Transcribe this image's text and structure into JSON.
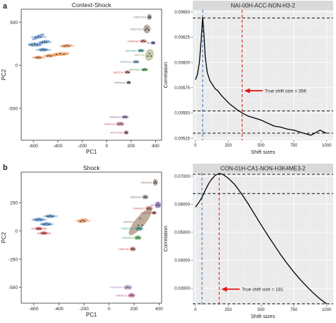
{
  "panels": [
    {
      "label": "a"
    },
    {
      "label": "b"
    }
  ],
  "chart_data": [
    {
      "type": "scatter",
      "title": "Context-Shock",
      "xlabel": "PC1",
      "ylabel": "PC2",
      "xlim": [
        -700,
        450
      ],
      "ylim": [
        -870,
        650
      ],
      "xticks": [
        -600,
        -400,
        -200,
        0,
        200,
        400
      ],
      "yticks": [
        -500,
        0,
        500
      ],
      "clusters": [
        {
          "label": "ACC-01H-MC",
          "color": "#2f6fb7",
          "x": -560,
          "y": 330,
          "w": 110,
          "h": 44,
          "rot": -25
        },
        {
          "label": "CA1-4H-MC",
          "color": "#2f6fb7",
          "x": -510,
          "y": 270,
          "w": 90,
          "h": 38,
          "rot": -10
        },
        {
          "label": "ACC-4H-MC",
          "color": "#2f6fb7",
          "x": -590,
          "y": 240,
          "w": 110,
          "h": 48,
          "rot": 0
        },
        {
          "label": "ACC-01H-MC",
          "color": "#2f6fb7",
          "x": -520,
          "y": 180,
          "w": 80,
          "h": 34,
          "rot": 0
        },
        {
          "label": "CA1-01H-MC",
          "color": "#e07020",
          "x": -330,
          "y": 225,
          "w": 90,
          "h": 30,
          "rot": -5
        },
        {
          "label": "CA1-4H-MC",
          "color": "#e07020",
          "x": -380,
          "y": 130,
          "w": 150,
          "h": 40,
          "rot": -5
        },
        {
          "label": "CA1-4H-MC",
          "color": "#e07020",
          "x": -470,
          "y": 110,
          "w": 70,
          "h": 30,
          "rot": 0
        },
        {
          "label": "ACC-4H-MC",
          "color": "#e07020",
          "x": -560,
          "y": 90,
          "w": 70,
          "h": 30,
          "rot": 0
        },
        {
          "label": "H3K27me3",
          "color": "#7a6a5a",
          "x": 350,
          "y": 560,
          "w": 40,
          "h": 70,
          "rot": 0
        },
        {
          "label": "H3K27me3",
          "color": "#7a6a5a",
          "x": 330,
          "y": 420,
          "w": 60,
          "h": 100,
          "rot": 0
        },
        {
          "label": "H3K4me3",
          "color": "#c04040",
          "x": 300,
          "y": 280,
          "w": 60,
          "h": 36,
          "rot": 0
        },
        {
          "label": "H3",
          "color": "#6040a0",
          "x": 380,
          "y": 260,
          "w": 40,
          "h": 40,
          "rot": 0
        },
        {
          "label": "H3K4me1",
          "color": "#30a0a0",
          "x": 280,
          "y": 170,
          "w": 60,
          "h": 34,
          "rot": 0
        },
        {
          "label": "H3K27ac",
          "color": "#a0a070",
          "x": 350,
          "y": 120,
          "w": 70,
          "h": 140,
          "rot": 15
        },
        {
          "label": "H3K9me3",
          "color": "#6090c0",
          "x": 240,
          "y": 40,
          "w": 60,
          "h": 40,
          "rot": 0
        },
        {
          "label": "H3K4me1",
          "color": "#40a040",
          "x": 310,
          "y": -50,
          "w": 60,
          "h": 34,
          "rot": 0
        },
        {
          "label": "H3K27ac",
          "color": "#c04040",
          "x": 170,
          "y": -80,
          "w": 50,
          "h": 40,
          "rot": 0
        },
        {
          "label": "H3K9me3",
          "color": "#7a6a5a",
          "x": 180,
          "y": -200,
          "w": 40,
          "h": 40,
          "rot": 0
        },
        {
          "label": "H3K4me3",
          "color": "#7a5a9a",
          "x": 150,
          "y": -600,
          "w": 60,
          "h": 40,
          "rot": 0
        },
        {
          "label": "H3K9me3",
          "color": "#b05070",
          "x": 110,
          "y": -680,
          "w": 70,
          "h": 50,
          "rot": 0
        },
        {
          "label": "H3K79me3",
          "color": "#b05070",
          "x": 160,
          "y": -780,
          "w": 40,
          "h": 50,
          "rot": 0
        }
      ]
    },
    {
      "type": "line",
      "title": "NAI-00H-ACC-NON-H3-2",
      "xlabel": "Shift sizes",
      "ylabel": "Correlation",
      "xlim": [
        -20,
        1050
      ],
      "ylim": [
        0.00523,
        0.00652
      ],
      "xticks": [
        0,
        250,
        500,
        750,
        1000
      ],
      "yticks": [
        0.00525,
        0.0055,
        0.00575,
        0.006,
        0.00625,
        0.0065
      ],
      "ytick_labels": [
        "0.00525",
        "0.00550",
        "0.00575",
        "0.00600",
        "0.00625",
        "0.00650"
      ],
      "x": [
        0,
        15,
        30,
        45,
        55,
        65,
        75,
        90,
        110,
        130,
        150,
        170,
        200,
        230,
        260,
        290,
        320,
        356,
        400,
        450,
        500,
        550,
        600,
        650,
        700,
        750,
        800,
        850,
        880,
        910,
        950,
        980,
        1000
      ],
      "y": [
        0.00583,
        0.00588,
        0.006,
        0.00624,
        0.00645,
        0.00628,
        0.00605,
        0.0059,
        0.00582,
        0.00578,
        0.00574,
        0.00572,
        0.00567,
        0.00563,
        0.00559,
        0.00556,
        0.00553,
        0.0055,
        0.00547,
        0.00545,
        0.00543,
        0.0054,
        0.00537,
        0.00536,
        0.00534,
        0.00533,
        0.00531,
        0.00529,
        0.00528,
        0.0053,
        0.00533,
        0.00531,
        0.0053
      ],
      "hlines": [
        0.00644,
        0.00552,
        0.0053
      ],
      "vlines": [
        {
          "x": 55,
          "color": "#2f6fb7"
        },
        {
          "x": 356,
          "color": "#e01010"
        }
      ],
      "annotation": "True shift size = 356",
      "annotation_point": [
        356,
        0.00572
      ],
      "grid": true
    },
    {
      "type": "scatter",
      "title": "Shock",
      "xlabel": "PC1",
      "ylabel": "PC2",
      "xlim": [
        -700,
        420
      ],
      "ylim": [
        -640,
        520
      ],
      "xticks": [
        -600,
        -400,
        -200,
        0,
        200,
        400
      ],
      "yticks": [
        -500,
        -250,
        0,
        250
      ],
      "clusters": [
        {
          "label": "ACC-01H-MC",
          "color": "#2f6fb7",
          "x": -560,
          "y": 100,
          "w": 90,
          "h": 34,
          "rot": 0
        },
        {
          "label": "CA1-01H-MC",
          "color": "#2f6fb7",
          "x": -470,
          "y": 130,
          "w": 80,
          "h": 32,
          "rot": 0
        },
        {
          "label": "CA1-4H-MC",
          "color": "#2f6fb7",
          "x": -500,
          "y": 60,
          "w": 90,
          "h": 34,
          "rot": 0
        },
        {
          "label": "ACC-01H-MC",
          "color": "#c03030",
          "x": -560,
          "y": 20,
          "w": 60,
          "h": 28,
          "rot": 0
        },
        {
          "label": "ACC-4H-MC",
          "color": "#c03030",
          "x": -520,
          "y": -20,
          "w": 60,
          "h": 28,
          "rot": 0
        },
        {
          "label": "CA1-01H-MC",
          "color": "#e07020",
          "x": -210,
          "y": 90,
          "w": 80,
          "h": 40,
          "rot": -10
        },
        {
          "label": "H3K9me3",
          "color": "#7a6a5a",
          "x": 370,
          "y": 430,
          "w": 40,
          "h": 60,
          "rot": 0
        },
        {
          "label": "H3K9me3",
          "color": "#7a6a5a",
          "x": 290,
          "y": 300,
          "w": 50,
          "h": 40,
          "rot": 0
        },
        {
          "label": "H3",
          "color": "#6040a0",
          "x": 390,
          "y": 230,
          "w": 50,
          "h": 60,
          "rot": 0
        },
        {
          "label": "H3K4me1",
          "color": "#c04040",
          "x": 320,
          "y": 200,
          "w": 60,
          "h": 40,
          "rot": 0
        },
        {
          "label": "H3K27ac",
          "color": "#c04040",
          "x": 360,
          "y": 160,
          "w": 40,
          "h": 30,
          "rot": 0
        },
        {
          "label": "H3K4me3",
          "color": "#8a6a4a",
          "x": 250,
          "y": 80,
          "w": 80,
          "h": 300,
          "rot": 40
        },
        {
          "label": "H3K27me3",
          "color": "#30a0a0",
          "x": 240,
          "y": 20,
          "w": 70,
          "h": 40,
          "rot": 0
        },
        {
          "label": "H3K4me3",
          "color": "#40a040",
          "x": 230,
          "y": -60,
          "w": 60,
          "h": 40,
          "rot": 0
        },
        {
          "label": "H3K27ac",
          "color": "#c04040",
          "x": 190,
          "y": -160,
          "w": 50,
          "h": 40,
          "rot": 0
        },
        {
          "label": "H3K79me3",
          "color": "#a080c0",
          "x": 150,
          "y": -500,
          "w": 70,
          "h": 44,
          "rot": 0
        },
        {
          "label": "H3K9me3",
          "color": "#c05080",
          "x": 180,
          "y": -570,
          "w": 60,
          "h": 40,
          "rot": 0
        }
      ]
    },
    {
      "type": "line",
      "title": "CON-01H-CA1-NON-H3K4ME3-2",
      "xlabel": "Shift sizes",
      "ylabel": "Correlation",
      "xlim": [
        -20,
        1050
      ],
      "ylim": [
        0.0242,
        0.0712
      ],
      "xticks": [
        0,
        250,
        500,
        750,
        1000
      ],
      "yticks": [
        0.03,
        0.04,
        0.05,
        0.06,
        0.07
      ],
      "ytick_labels": [
        "0.03000",
        "0.04000",
        "0.05000",
        "0.06000",
        "0.07000"
      ],
      "x": [
        0,
        25,
        50,
        75,
        100,
        125,
        150,
        181,
        210,
        250,
        300,
        350,
        400,
        450,
        500,
        550,
        600,
        650,
        700,
        750,
        800,
        850,
        900,
        950,
        1000
      ],
      "y": [
        0.059,
        0.0605,
        0.0625,
        0.065,
        0.0673,
        0.069,
        0.0703,
        0.071,
        0.0706,
        0.0693,
        0.067,
        0.0638,
        0.0603,
        0.0565,
        0.0527,
        0.049,
        0.0455,
        0.042,
        0.0388,
        0.0358,
        0.0331,
        0.0306,
        0.0283,
        0.0262,
        0.0245
      ],
      "hlines": [
        0.0707,
        0.0638,
        0.0245
      ],
      "vlines": [
        {
          "x": 50,
          "color": "#2f6fb7"
        },
        {
          "x": 181,
          "color": "#e01010"
        }
      ],
      "annotation": "True shift size = 181",
      "annotation_point": [
        181,
        0.0297
      ],
      "grid": true
    }
  ]
}
